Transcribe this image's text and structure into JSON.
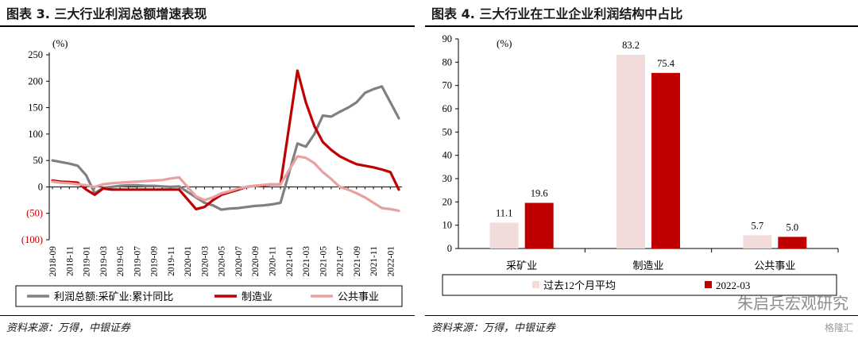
{
  "left": {
    "title": "图表 3. 三大行业利润总额增速表现",
    "source": "资料来源：万得，中银证券"
  },
  "right": {
    "title": "图表 4. 三大行业在工业企业利润结构中占比",
    "source": "资料来源：万得，中银证券"
  },
  "watermark": "朱启兵宏观研究",
  "logo": "格隆汇",
  "colors": {
    "mining": "#808080",
    "manufacturing": "#C00000",
    "utilities": "#E8A0A0",
    "avg_bar": "#F2DCDB",
    "latest_bar": "#C00000"
  },
  "chart_data": [
    {
      "type": "line",
      "ylabel": "(%)",
      "ylim": [
        -100,
        250
      ],
      "yticks": [
        250,
        200,
        150,
        100,
        50,
        0,
        -50,
        -100
      ],
      "ytick_labels": [
        "250",
        "200",
        "150",
        "100",
        "50",
        "0",
        "(50)",
        "(100)"
      ],
      "x": [
        "2018-09",
        "2018-10",
        "2018-11",
        "2018-12",
        "2019-01",
        "2019-02",
        "2019-03",
        "2019-04",
        "2019-05",
        "2019-06",
        "2019-07",
        "2019-08",
        "2019-09",
        "2019-10",
        "2019-11",
        "2019-12",
        "2020-01",
        "2020-02",
        "2020-03",
        "2020-04",
        "2020-05",
        "2020-06",
        "2020-07",
        "2020-08",
        "2020-09",
        "2020-10",
        "2020-11",
        "2020-12",
        "2021-01",
        "2021-02",
        "2021-03",
        "2021-04",
        "2021-05",
        "2021-06",
        "2021-07",
        "2021-08",
        "2021-09",
        "2021-10",
        "2021-11",
        "2021-12",
        "2022-01",
        "2022-02"
      ],
      "xtick_labels": [
        "2018-09",
        "2018-11",
        "2019-01",
        "2019-03",
        "2019-05",
        "2019-07",
        "2019-09",
        "2019-11",
        "2020-01",
        "2020-03",
        "2020-05",
        "2020-07",
        "2020-09",
        "2020-11",
        "2021-01",
        "2021-03",
        "2021-05",
        "2021-07",
        "2021-09",
        "2021-11",
        "2022-01"
      ],
      "grid": false,
      "legend_position": "bottom",
      "series": [
        {
          "name": "利润总额:采矿业:累计同比",
          "color": "#808080",
          "values": [
            50,
            47,
            44,
            40,
            22,
            -12,
            -2,
            0,
            2,
            3,
            3,
            2,
            2,
            1,
            0,
            1,
            null,
            -20,
            -30,
            -35,
            -43,
            -41,
            -40,
            -38,
            -36,
            -35,
            -33,
            -30,
            null,
            82,
            76,
            100,
            135,
            133,
            142,
            150,
            160,
            178,
            185,
            190,
            160,
            130
          ]
        },
        {
          "name": "制造业",
          "color": "#C00000",
          "values": [
            12,
            10,
            9,
            8,
            -5,
            -15,
            -3,
            -5,
            -5,
            -5,
            -5,
            -5,
            -5,
            -5,
            -5,
            -5,
            null,
            -42,
            -38,
            -25,
            -15,
            -10,
            -5,
            0,
            2,
            3,
            5,
            5,
            null,
            220,
            160,
            115,
            85,
            70,
            58,
            50,
            43,
            40,
            37,
            33,
            28,
            -5
          ]
        },
        {
          "name": "公共事业",
          "color": "#E8A0A0",
          "values": [
            10,
            8,
            7,
            5,
            3,
            0,
            5,
            7,
            8,
            9,
            10,
            11,
            12,
            13,
            16,
            18,
            null,
            -18,
            -25,
            -20,
            -12,
            -8,
            -3,
            0,
            2,
            4,
            5,
            5,
            null,
            58,
            55,
            45,
            28,
            15,
            0,
            -5,
            -12,
            -20,
            -30,
            -40,
            -42,
            -45
          ]
        }
      ]
    },
    {
      "type": "bar",
      "ylabel": "(%)",
      "ylim": [
        0,
        90
      ],
      "yticks": [
        0,
        10,
        20,
        30,
        40,
        50,
        60,
        70,
        80,
        90
      ],
      "categories": [
        "采矿业",
        "制造业",
        "公共事业"
      ],
      "grid": false,
      "legend_position": "bottom",
      "series": [
        {
          "name": "过去12个月平均",
          "color": "#F2DCDB",
          "values": [
            11.1,
            83.2,
            5.7
          ],
          "labels": [
            "11.1",
            "83.2",
            "5.7"
          ]
        },
        {
          "name": "2022-03",
          "color": "#C00000",
          "values": [
            19.6,
            75.4,
            5.0
          ],
          "labels": [
            "19.6",
            "75.4",
            "5.0"
          ]
        }
      ]
    }
  ]
}
